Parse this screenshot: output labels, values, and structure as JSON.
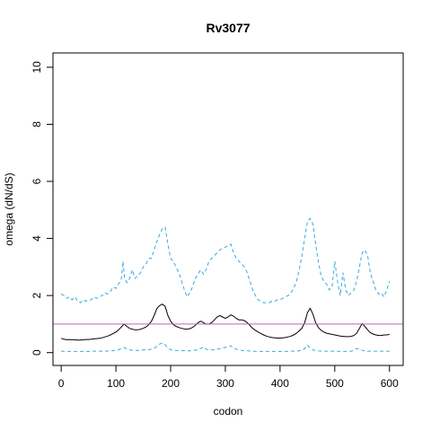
{
  "chart_data": {
    "type": "line",
    "title": "Rv3077",
    "xlabel": "codon",
    "ylabel": "omega (dN/dS)",
    "xlim": [
      -15,
      625
    ],
    "ylim": [
      -0.45,
      10.5
    ],
    "xticks": [
      0,
      100,
      200,
      300,
      400,
      500,
      600
    ],
    "yticks": [
      0,
      2,
      4,
      6,
      8,
      10
    ],
    "grid": false,
    "reference_line": {
      "y": 1,
      "color": "#c55fc5"
    },
    "series": [
      {
        "style": "dashed",
        "color": "#3aa8e0",
        "x": [
          0,
          5,
          10,
          15,
          20,
          25,
          30,
          35,
          40,
          45,
          50,
          55,
          60,
          65,
          70,
          75,
          80,
          85,
          90,
          95,
          100,
          105,
          110,
          113,
          116,
          120,
          125,
          130,
          135,
          140,
          145,
          150,
          155,
          160,
          165,
          170,
          175,
          180,
          185,
          190,
          195,
          200,
          205,
          210,
          215,
          220,
          225,
          230,
          235,
          240,
          245,
          250,
          255,
          260,
          265,
          270,
          275,
          280,
          285,
          290,
          295,
          300,
          305,
          310,
          315,
          320,
          325,
          330,
          335,
          340,
          345,
          350,
          355,
          360,
          365,
          370,
          375,
          380,
          385,
          390,
          395,
          400,
          405,
          410,
          415,
          420,
          425,
          430,
          435,
          440,
          445,
          450,
          455,
          460,
          465,
          470,
          475,
          480,
          485,
          490,
          495,
          500,
          505,
          510,
          515,
          520,
          525,
          530,
          535,
          540,
          545,
          550,
          555,
          560,
          565,
          570,
          575,
          580,
          585,
          590,
          595,
          600
        ],
        "values": [
          2.05,
          2.0,
          1.9,
          1.95,
          1.85,
          1.95,
          1.8,
          1.75,
          1.85,
          1.8,
          1.85,
          1.85,
          1.95,
          1.9,
          1.95,
          2.0,
          2.1,
          2.05,
          2.15,
          2.3,
          2.25,
          2.4,
          2.6,
          3.2,
          2.6,
          2.45,
          2.6,
          2.9,
          2.6,
          2.7,
          2.8,
          3.0,
          3.1,
          3.3,
          3.3,
          3.6,
          3.9,
          4.15,
          4.35,
          4.4,
          3.8,
          3.3,
          3.2,
          3.0,
          2.8,
          2.5,
          2.2,
          1.95,
          2.1,
          2.3,
          2.6,
          2.75,
          2.9,
          2.75,
          2.9,
          3.2,
          3.3,
          3.4,
          3.5,
          3.6,
          3.65,
          3.7,
          3.75,
          3.8,
          3.5,
          3.3,
          3.2,
          3.1,
          3.0,
          2.8,
          2.5,
          2.2,
          2.0,
          1.85,
          1.8,
          1.75,
          1.75,
          1.75,
          1.8,
          1.8,
          1.85,
          1.85,
          1.9,
          1.95,
          2.0,
          2.1,
          2.25,
          2.5,
          2.9,
          3.4,
          4.0,
          4.6,
          4.7,
          4.5,
          3.8,
          3.2,
          2.7,
          2.5,
          2.4,
          2.2,
          2.3,
          3.2,
          2.5,
          2.0,
          2.8,
          2.2,
          2.0,
          2.1,
          2.2,
          2.5,
          3.0,
          3.5,
          3.6,
          3.4,
          2.8,
          2.5,
          2.2,
          2.05,
          2.1,
          1.95,
          2.2,
          2.5
        ]
      },
      {
        "style": "solid",
        "color": "#000000",
        "x": [
          0,
          5,
          10,
          15,
          20,
          25,
          30,
          35,
          40,
          45,
          50,
          55,
          60,
          65,
          70,
          75,
          80,
          85,
          90,
          95,
          100,
          105,
          110,
          115,
          120,
          125,
          130,
          135,
          140,
          145,
          150,
          155,
          160,
          165,
          170,
          175,
          180,
          185,
          190,
          195,
          200,
          205,
          210,
          215,
          220,
          225,
          230,
          235,
          240,
          245,
          250,
          255,
          260,
          265,
          270,
          275,
          280,
          285,
          290,
          295,
          300,
          305,
          310,
          315,
          320,
          325,
          330,
          335,
          340,
          345,
          350,
          355,
          360,
          365,
          370,
          375,
          380,
          385,
          390,
          395,
          400,
          405,
          410,
          415,
          420,
          425,
          430,
          435,
          440,
          445,
          450,
          455,
          460,
          465,
          470,
          475,
          480,
          485,
          490,
          495,
          500,
          505,
          510,
          515,
          520,
          525,
          530,
          535,
          540,
          545,
          550,
          555,
          560,
          565,
          570,
          575,
          580,
          585,
          590,
          595,
          600
        ],
        "values": [
          0.5,
          0.47,
          0.45,
          0.46,
          0.45,
          0.45,
          0.44,
          0.44,
          0.45,
          0.46,
          0.46,
          0.47,
          0.48,
          0.49,
          0.5,
          0.52,
          0.55,
          0.58,
          0.62,
          0.67,
          0.72,
          0.8,
          0.9,
          1.0,
          0.92,
          0.85,
          0.82,
          0.8,
          0.8,
          0.82,
          0.85,
          0.9,
          0.98,
          1.1,
          1.3,
          1.55,
          1.65,
          1.7,
          1.62,
          1.3,
          1.1,
          0.98,
          0.92,
          0.88,
          0.85,
          0.83,
          0.82,
          0.84,
          0.88,
          0.95,
          1.05,
          1.1,
          1.05,
          1.0,
          1.0,
          1.05,
          1.15,
          1.25,
          1.3,
          1.25,
          1.2,
          1.25,
          1.32,
          1.28,
          1.2,
          1.15,
          1.15,
          1.12,
          1.05,
          0.95,
          0.85,
          0.78,
          0.72,
          0.67,
          0.62,
          0.58,
          0.55,
          0.53,
          0.52,
          0.51,
          0.51,
          0.52,
          0.53,
          0.55,
          0.58,
          0.62,
          0.68,
          0.76,
          0.86,
          1.05,
          1.4,
          1.55,
          1.35,
          1.05,
          0.88,
          0.78,
          0.72,
          0.68,
          0.66,
          0.64,
          0.62,
          0.6,
          0.58,
          0.57,
          0.56,
          0.56,
          0.57,
          0.6,
          0.68,
          0.85,
          1.02,
          0.92,
          0.8,
          0.7,
          0.65,
          0.62,
          0.6,
          0.6,
          0.62,
          0.62,
          0.64
        ]
      },
      {
        "style": "dashed",
        "color": "#3aa8e0",
        "x": [
          0,
          10,
          20,
          30,
          40,
          50,
          60,
          70,
          80,
          90,
          100,
          105,
          110,
          115,
          120,
          125,
          130,
          140,
          150,
          160,
          170,
          175,
          180,
          185,
          190,
          195,
          200,
          210,
          220,
          230,
          240,
          250,
          255,
          260,
          265,
          270,
          280,
          290,
          300,
          305,
          310,
          315,
          320,
          330,
          340,
          350,
          360,
          370,
          380,
          390,
          400,
          410,
          420,
          430,
          440,
          445,
          450,
          455,
          460,
          470,
          480,
          490,
          500,
          510,
          520,
          530,
          535,
          540,
          545,
          550,
          560,
          570,
          580,
          590,
          600
        ],
        "values": [
          0.05,
          0.04,
          0.04,
          0.04,
          0.04,
          0.04,
          0.05,
          0.05,
          0.05,
          0.06,
          0.08,
          0.1,
          0.14,
          0.18,
          0.13,
          0.1,
          0.08,
          0.08,
          0.09,
          0.1,
          0.15,
          0.22,
          0.3,
          0.34,
          0.28,
          0.16,
          0.1,
          0.08,
          0.07,
          0.06,
          0.07,
          0.1,
          0.14,
          0.2,
          0.12,
          0.09,
          0.1,
          0.14,
          0.18,
          0.22,
          0.24,
          0.16,
          0.12,
          0.08,
          0.06,
          0.05,
          0.04,
          0.04,
          0.04,
          0.04,
          0.04,
          0.04,
          0.05,
          0.05,
          0.08,
          0.14,
          0.26,
          0.16,
          0.09,
          0.06,
          0.05,
          0.05,
          0.05,
          0.04,
          0.04,
          0.05,
          0.08,
          0.14,
          0.12,
          0.08,
          0.05,
          0.05,
          0.05,
          0.05,
          0.05
        ]
      }
    ]
  }
}
